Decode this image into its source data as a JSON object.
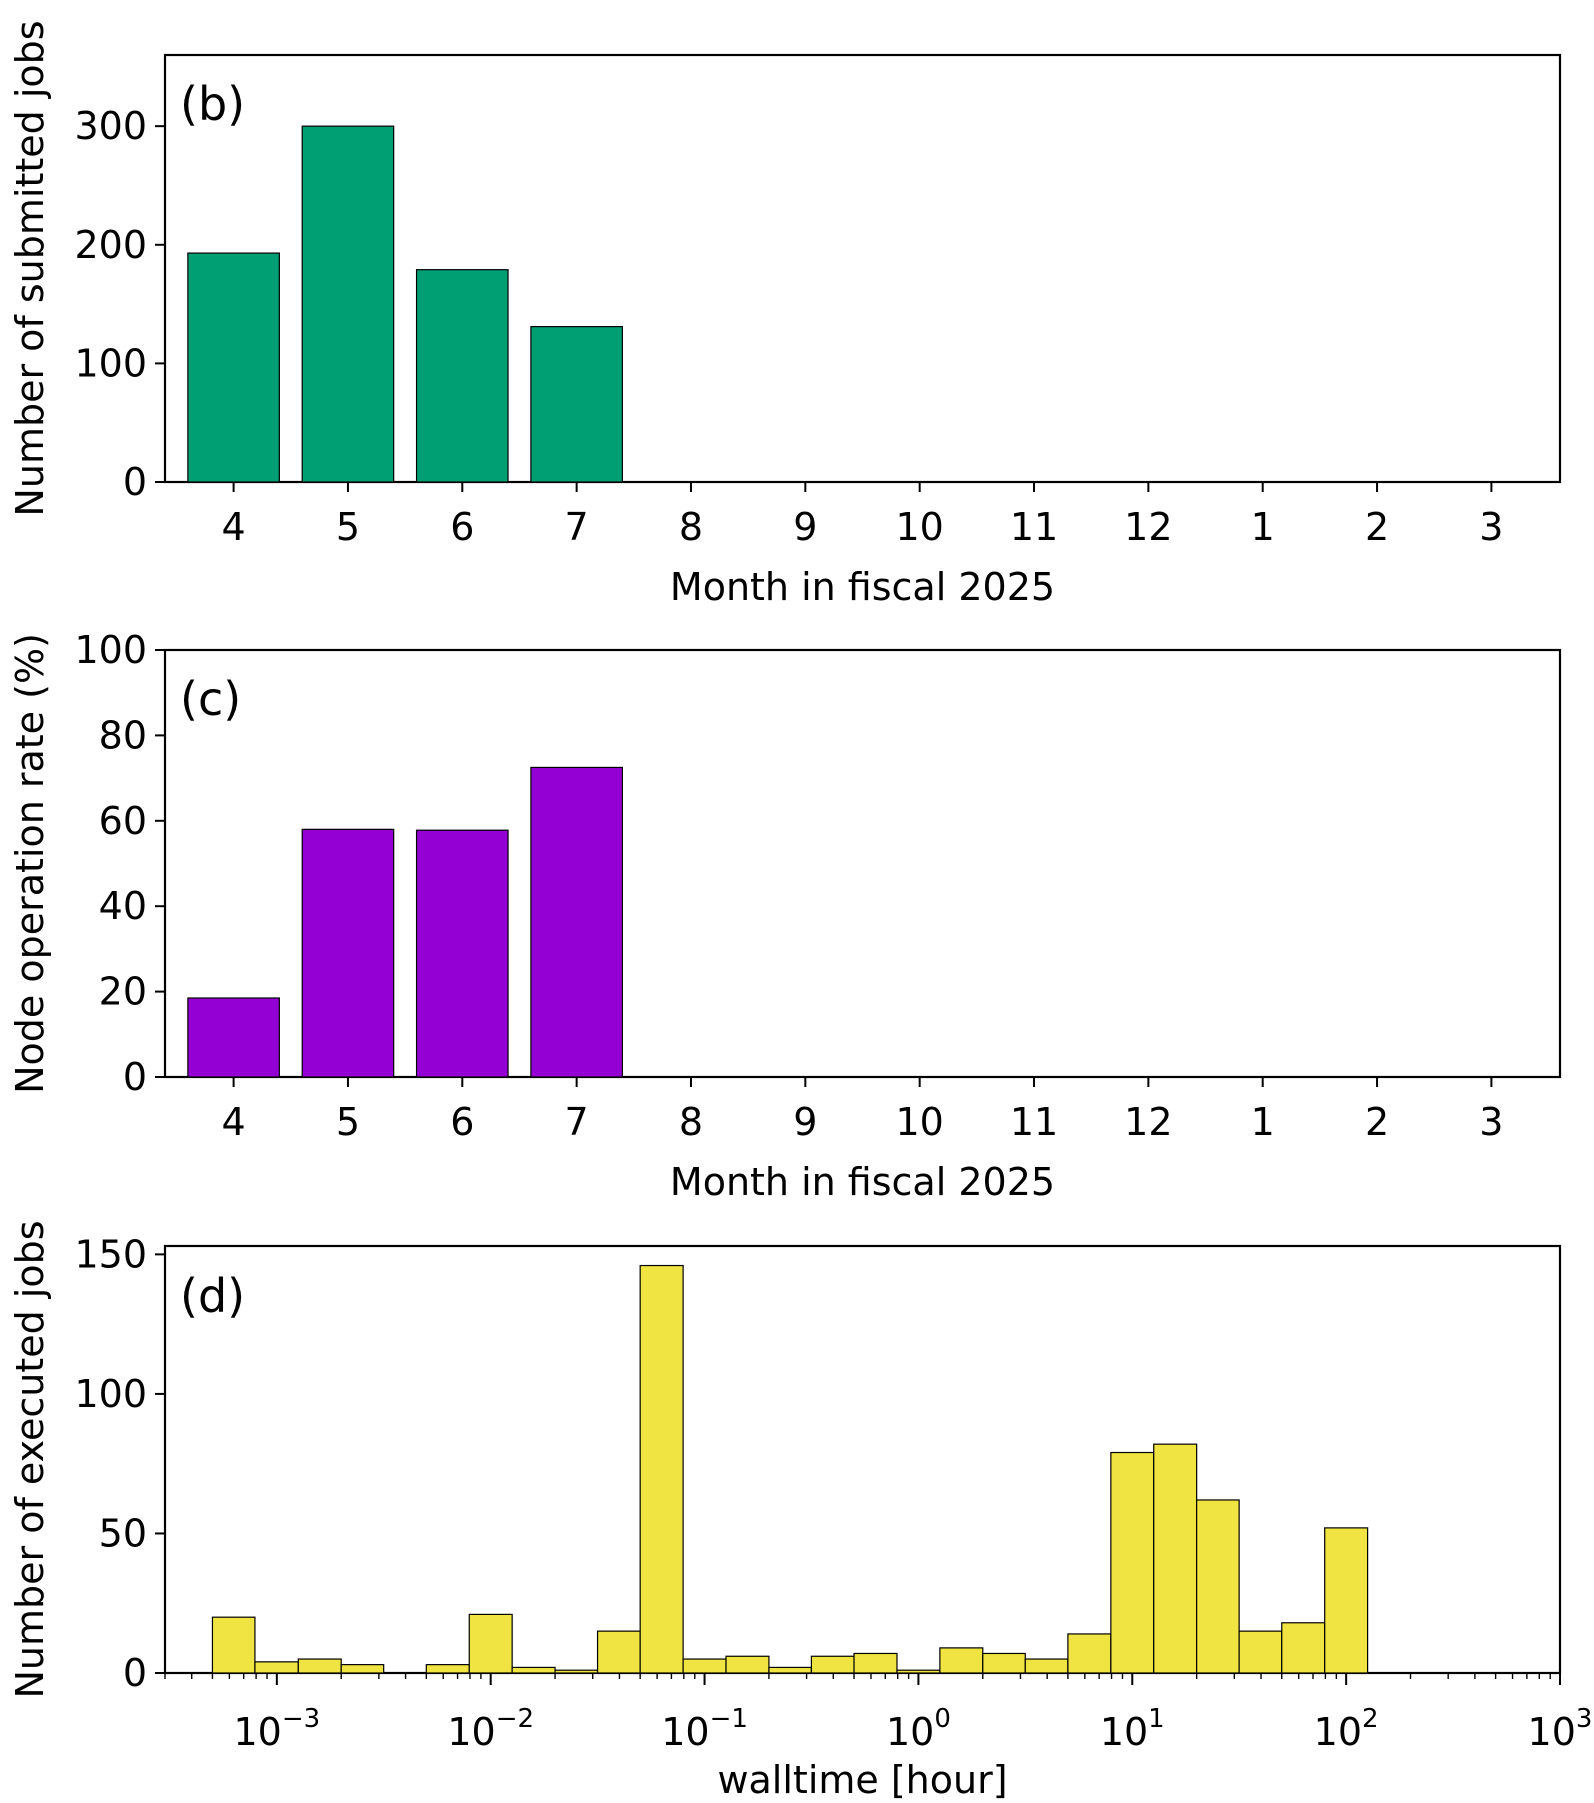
{
  "chart_data": [
    {
      "type": "bar",
      "panel_label": "(b)",
      "xlabel": "Month in fiscal 2025",
      "ylabel": "Number of submitted jobs",
      "categories": [
        "4",
        "5",
        "6",
        "7",
        "8",
        "9",
        "10",
        "11",
        "12",
        "1",
        "2",
        "3"
      ],
      "values": [
        193,
        300,
        179,
        131,
        0,
        0,
        0,
        0,
        0,
        0,
        0,
        0
      ],
      "ylim": [
        0,
        360
      ],
      "yticks": [
        "0",
        "100",
        "200",
        "300"
      ],
      "color": "#009e73",
      "grid": false
    },
    {
      "type": "bar",
      "panel_label": "(c)",
      "xlabel": "Month in fiscal 2025",
      "ylabel": "Node operation rate (%)",
      "categories": [
        "4",
        "5",
        "6",
        "7",
        "8",
        "9",
        "10",
        "11",
        "12",
        "1",
        "2",
        "3"
      ],
      "values": [
        18.5,
        58,
        57.8,
        72.5,
        0,
        0,
        0,
        0,
        0,
        0,
        0,
        0
      ],
      "ylim": [
        0,
        100
      ],
      "yticks": [
        "0",
        "20",
        "40",
        "60",
        "80",
        "100"
      ],
      "color": "#9400d3",
      "grid": false
    },
    {
      "type": "bar",
      "subtype": "histogram",
      "panel_label": "(d)",
      "xlabel": "walltime [hour]",
      "ylabel": "Number of executed jobs",
      "xscale": "log",
      "xlim": [
        0.0003,
        1000
      ],
      "ylim": [
        0,
        153
      ],
      "yticks": [
        "0",
        "50",
        "100",
        "150"
      ],
      "xticks": [
        {
          "base": "10",
          "exp": "−3"
        },
        {
          "base": "10",
          "exp": "−2"
        },
        {
          "base": "10",
          "exp": "−1"
        },
        {
          "base": "10",
          "exp": "0"
        },
        {
          "base": "10",
          "exp": "1"
        },
        {
          "base": "10",
          "exp": "2"
        },
        {
          "base": "10",
          "exp": "3"
        }
      ],
      "bin_edges": [
        0.0005,
        0.00079,
        0.00126,
        0.002,
        0.00316,
        0.005,
        0.00794,
        0.0126,
        0.02,
        0.0316,
        0.05,
        0.0794,
        0.126,
        0.2,
        0.316,
        0.5,
        0.794,
        1.26,
        2.0,
        3.16,
        5.0,
        7.94,
        12.6,
        20,
        31.6,
        50,
        79.4,
        126,
        200
      ],
      "counts": [
        20,
        4,
        5,
        3,
        0,
        3,
        21,
        2,
        1,
        15,
        146,
        5,
        6,
        2,
        6,
        7,
        1,
        9,
        7,
        5,
        14,
        79,
        82,
        62,
        15,
        18,
        52,
        0
      ],
      "color": "#f0e442",
      "grid": false
    }
  ]
}
